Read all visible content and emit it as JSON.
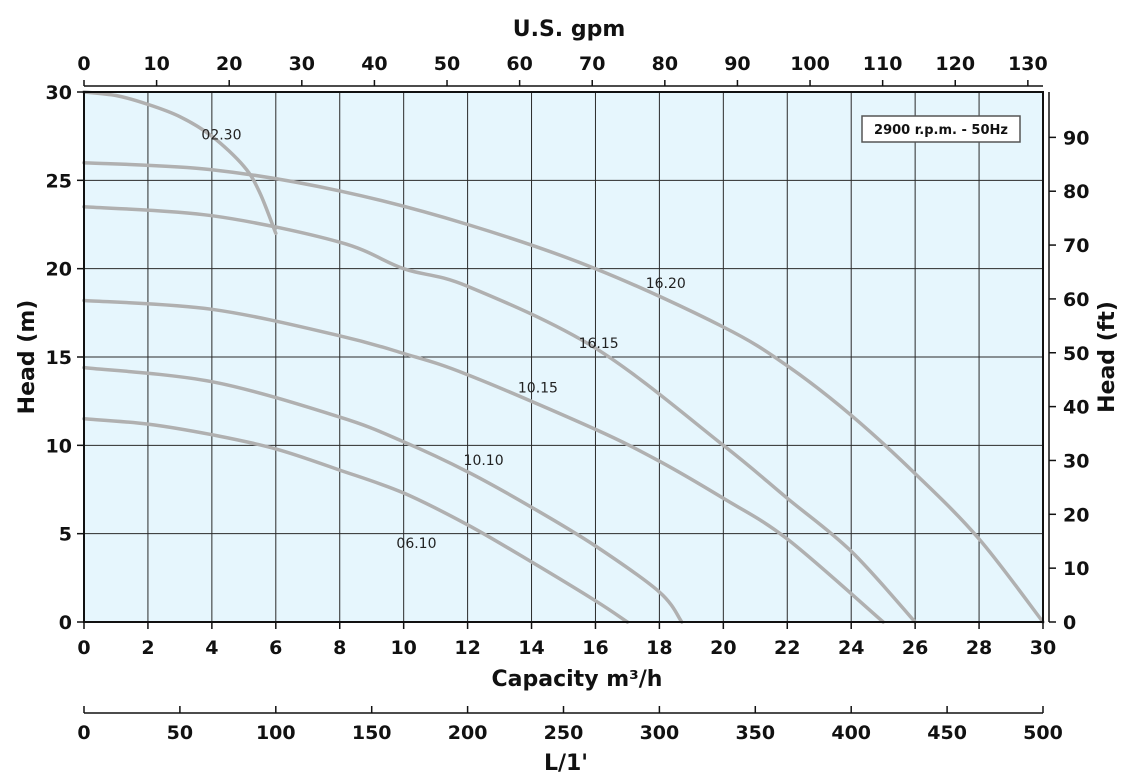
{
  "chart_data": {
    "type": "line",
    "title": "",
    "note": "2900 r.p.m. - 50Hz",
    "xlabel": "Capacity m³/h",
    "ylabel": "Head (m)",
    "xlim": [
      0,
      30
    ],
    "ylim": [
      0,
      30
    ],
    "x_ticks": [
      0,
      2,
      4,
      6,
      8,
      10,
      12,
      14,
      16,
      18,
      20,
      22,
      24,
      26,
      28,
      30
    ],
    "y_ticks": [
      0,
      5,
      10,
      15,
      20,
      25,
      30
    ],
    "top_axis": {
      "label": "U.S. gpm",
      "ticks": [
        0,
        10,
        20,
        30,
        40,
        50,
        60,
        70,
        80,
        90,
        100,
        110,
        120,
        130
      ]
    },
    "right_axis": {
      "label": "Head (ft)",
      "ticks": [
        0,
        10,
        20,
        30,
        40,
        50,
        60,
        70,
        80,
        90
      ]
    },
    "bottom_axis_2": {
      "label": "L/1'",
      "ticks": [
        0,
        50,
        100,
        150,
        200,
        250,
        300,
        350,
        400,
        450,
        500
      ]
    },
    "grid": true,
    "colors": {
      "plot_bg": "#e6f6fd",
      "curve": "#b0b0b0",
      "grid": "#2a2a2a"
    },
    "series": [
      {
        "name": "02.30",
        "x": [
          0,
          1,
          2,
          3,
          4,
          5,
          5.5,
          6
        ],
        "y": [
          30,
          29.8,
          29.3,
          28.6,
          27.5,
          25.8,
          24.3,
          22
        ]
      },
      {
        "name": "16.20",
        "x": [
          0,
          4,
          8,
          12,
          16,
          20,
          22,
          24,
          26,
          28,
          30
        ],
        "y": [
          26,
          25.6,
          24.4,
          22.5,
          20,
          16.7,
          14.5,
          11.7,
          8.4,
          4.7,
          0
        ]
      },
      {
        "name": "16.15",
        "x": [
          0,
          4,
          8,
          10,
          12,
          16,
          20,
          22,
          24,
          26
        ],
        "y": [
          23.5,
          23,
          21.5,
          20,
          19,
          15.5,
          10,
          7,
          4,
          0
        ]
      },
      {
        "name": "10.15",
        "x": [
          0,
          4,
          8,
          10,
          12,
          16,
          18,
          20,
          22,
          25
        ],
        "y": [
          18.2,
          17.7,
          16.2,
          15.2,
          14,
          10.9,
          9.1,
          7,
          4.7,
          0
        ]
      },
      {
        "name": "10.10",
        "x": [
          0,
          4,
          8,
          10,
          12,
          14,
          16,
          18,
          18.7
        ],
        "y": [
          14.4,
          13.6,
          11.6,
          10.2,
          8.5,
          6.5,
          4.3,
          1.7,
          0
        ]
      },
      {
        "name": "06.10",
        "x": [
          0,
          2,
          4,
          6,
          8,
          10,
          12,
          14,
          16,
          17
        ],
        "y": [
          11.5,
          11.2,
          10.6,
          9.8,
          8.6,
          7.3,
          5.5,
          3.4,
          1.2,
          0
        ]
      }
    ],
    "curve_labels": [
      {
        "text": "02.30",
        "x": 4.3,
        "y": 27.3
      },
      {
        "text": "16.20",
        "x": 18.2,
        "y": 18.9
      },
      {
        "text": "16.15",
        "x": 16.1,
        "y": 15.5
      },
      {
        "text": "10.15",
        "x": 14.2,
        "y": 13.0
      },
      {
        "text": "10.10",
        "x": 12.5,
        "y": 8.9
      },
      {
        "text": "06.10",
        "x": 10.4,
        "y": 4.2
      }
    ]
  }
}
